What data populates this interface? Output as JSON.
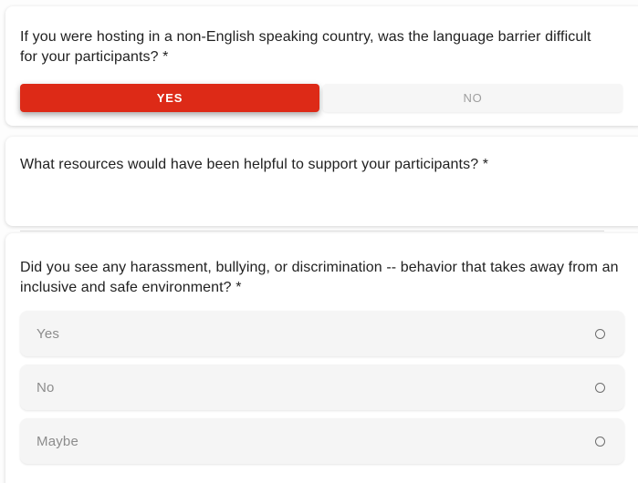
{
  "colors": {
    "accent_red": "#dd2a17",
    "card_background": "#ffffff",
    "option_row_background": "#f5f5f5",
    "question_text": "#212121",
    "muted_text": "#8c8c8c"
  },
  "cards": [
    {
      "question": "If you were hosting in a non-English speaking country, was the language barrier difficult for your participants? *",
      "buttons": [
        {
          "label": "YES",
          "selected": true
        },
        {
          "label": "NO",
          "selected": false
        }
      ]
    },
    {
      "question": "What resources would have been helpful to support your participants? *",
      "input": {
        "value": "",
        "placeholder": ""
      }
    },
    {
      "question": "Did you see any harassment, bullying, or discrimination -- behavior that takes away from an inclusive and safe environment? *",
      "options": [
        {
          "label": "Yes",
          "selected": false
        },
        {
          "label": "No",
          "selected": false
        },
        {
          "label": "Maybe",
          "selected": false
        }
      ]
    }
  ]
}
